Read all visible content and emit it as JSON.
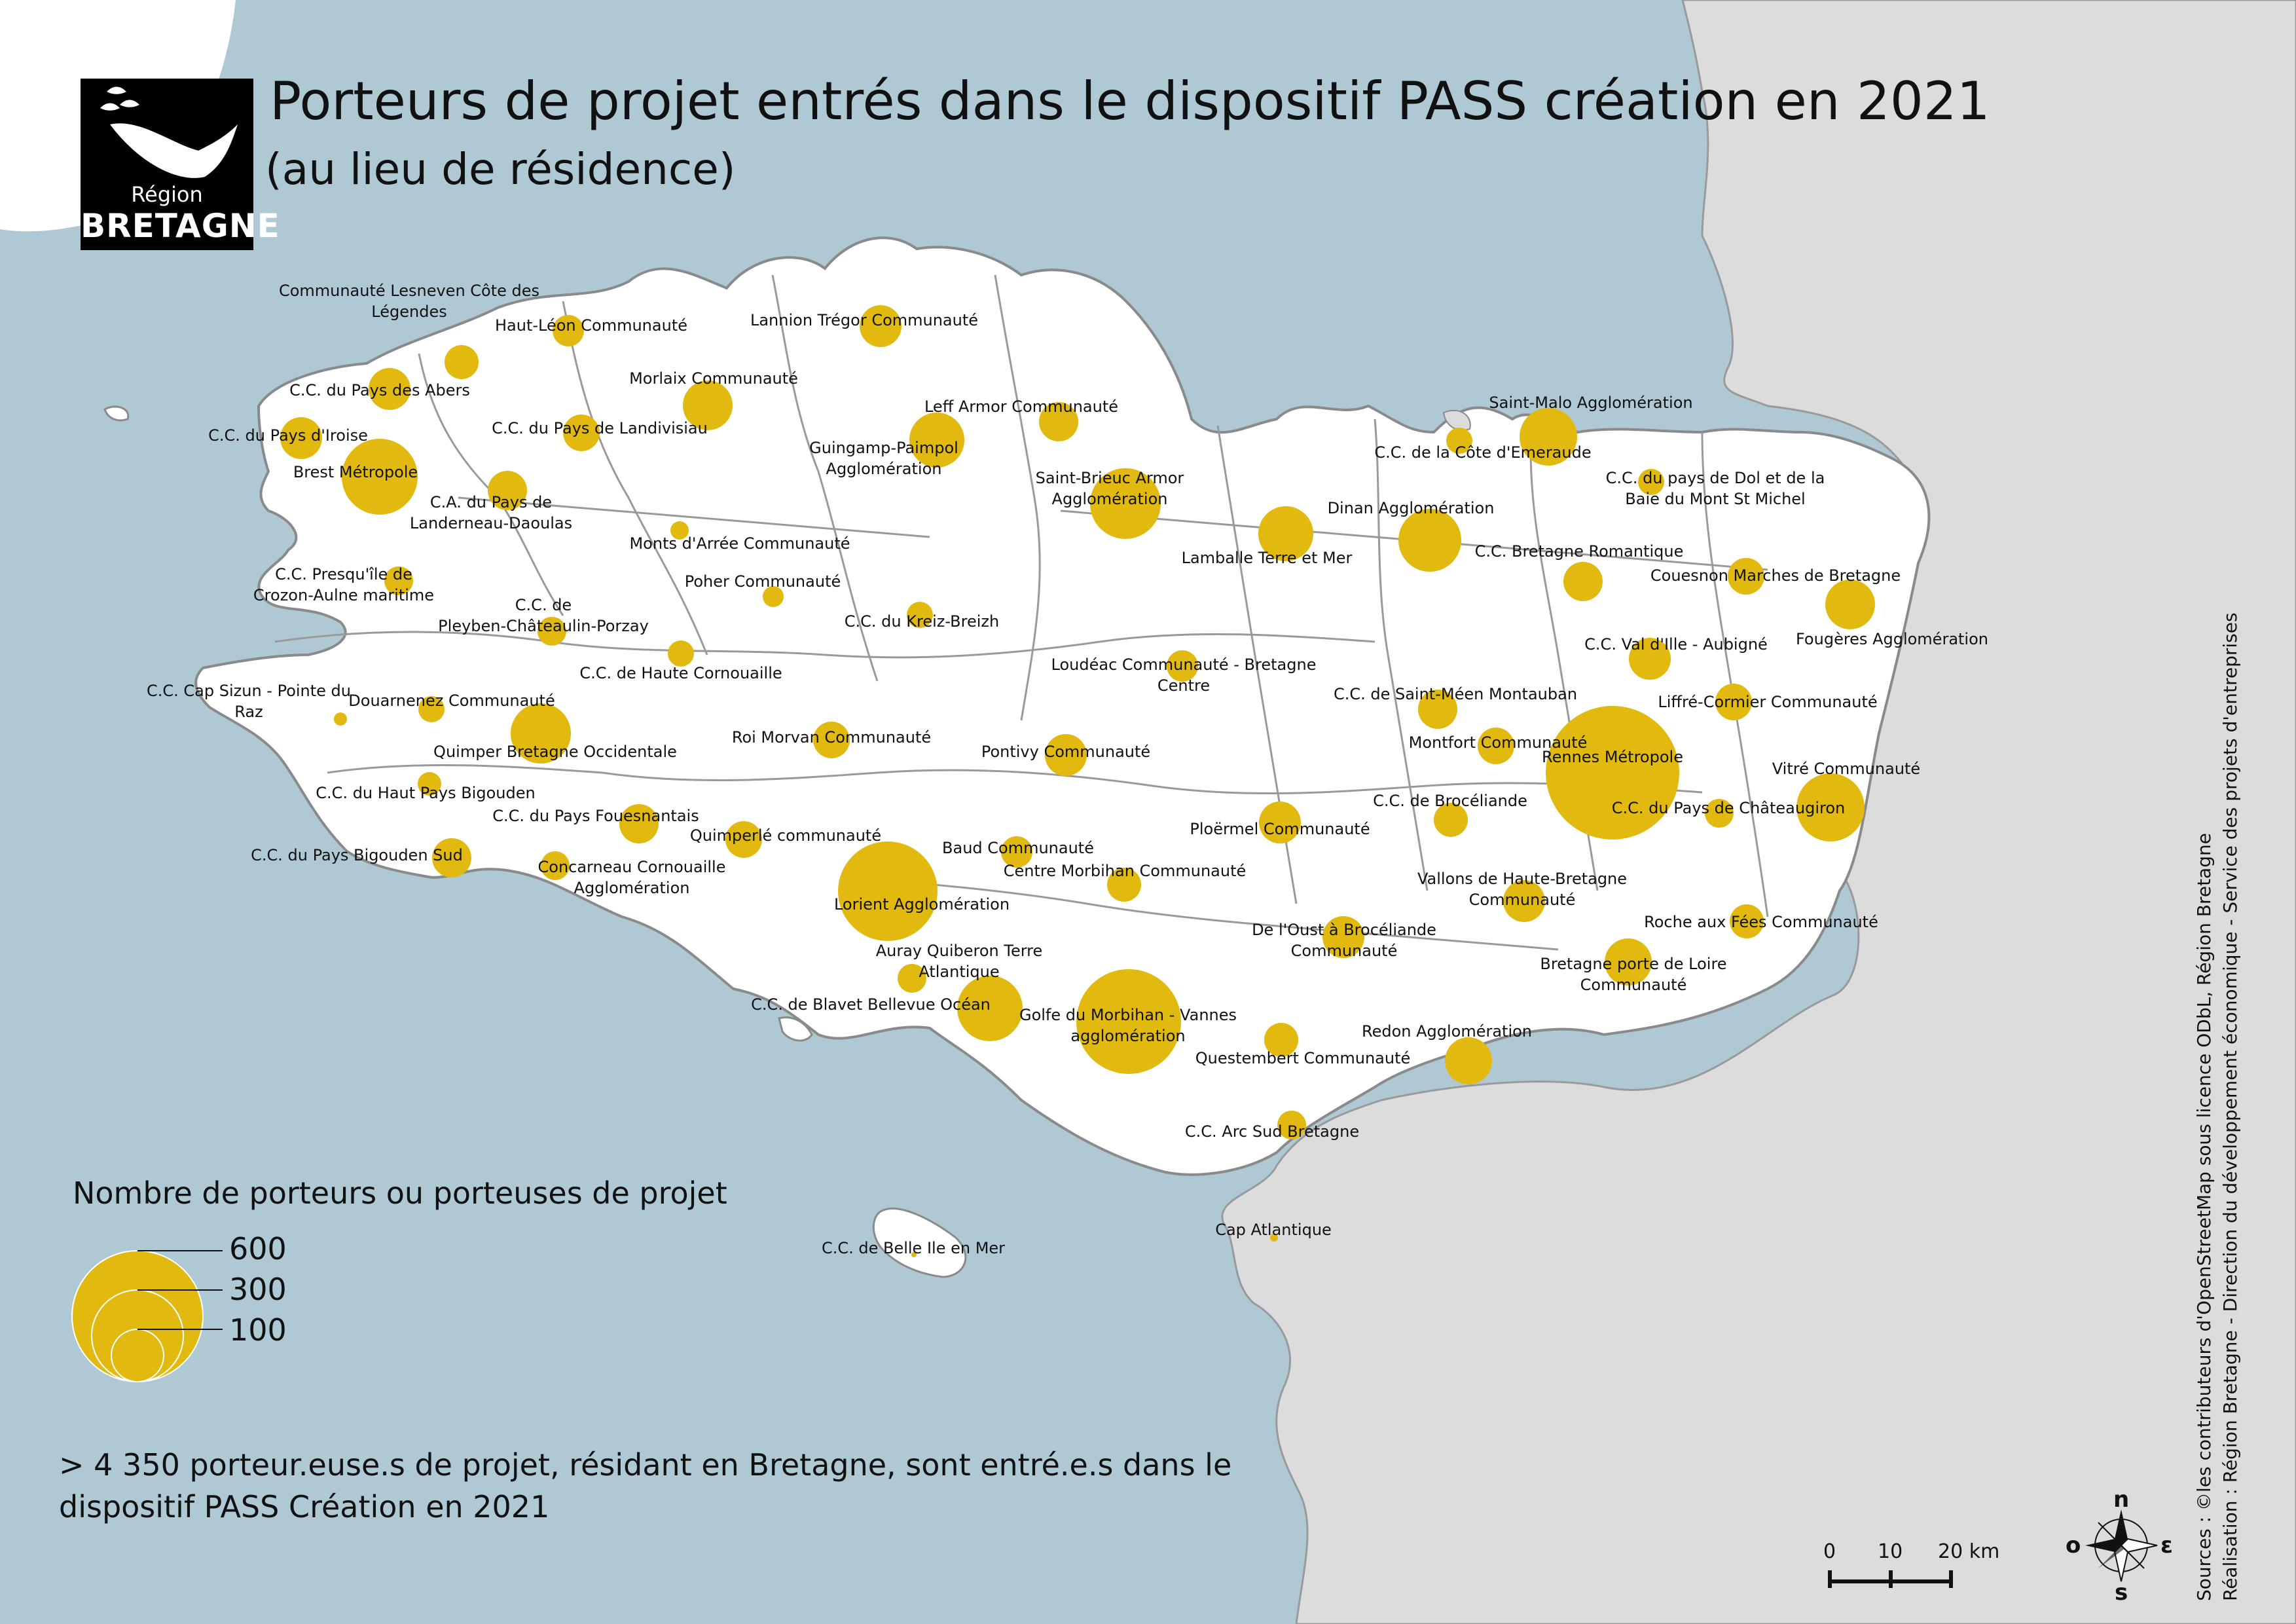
{
  "title": "Porteurs de projet entrés dans le dispositif PASS création en 2021",
  "subtitle": "(au lieu de résidence)",
  "logo": {
    "line1": "Région",
    "line2": "BRETAGNE",
    "icon": "hermine-leaf-icon"
  },
  "colors": {
    "sea": "#aec9d3",
    "land": "#ffffff",
    "neighbor_land": "#dcdcdc",
    "bubble": "#e1b90f",
    "border": "#8a8a8a"
  },
  "legend": {
    "title": "Nombre de porteurs ou porteuses de projet",
    "values": [
      "600",
      "300",
      "100"
    ]
  },
  "note": "> 4 350 porteur.euse.s de projet, résidant en Bretagne, sont entré.e.s dans le dispositif PASS Création en 2021",
  "scale": {
    "labels": [
      "0",
      "10",
      "20 km"
    ]
  },
  "compass": {
    "n": "n",
    "s": "s",
    "e": "ε",
    "o": "o"
  },
  "credits": {
    "line1": "Sources : ©les contributeurs d'OpenStreetMap sous licence ODbL, Région Bretagne",
    "line2": "Réalisation : Région Bretagne - Direction du développement économique - Service des projets d'entreprises"
  },
  "epci": [
    {
      "name": "Communauté Lesneven Côte des Légendes",
      "lines": [
        "Communauté Lesneven Côte des",
        "Légendes"
      ]
    },
    {
      "name": "Haut-Léon Communauté",
      "lines": [
        "Haut-Léon Communauté"
      ]
    },
    {
      "name": "Lannion Trégor Communauté",
      "lines": [
        "Lannion Trégor Communauté"
      ]
    },
    {
      "name": "Morlaix Communauté",
      "lines": [
        "Morlaix Communauté"
      ]
    },
    {
      "name": "C.C. du Pays des Abers",
      "lines": [
        "C.C. du Pays des Abers"
      ]
    },
    {
      "name": "C.C. du Pays de Landivisiau",
      "lines": [
        "C.C. du Pays de Landivisiau"
      ]
    },
    {
      "name": "C.C. du Pays d'Iroise",
      "lines": [
        "C.C. du Pays d'Iroise"
      ]
    },
    {
      "name": "Brest Métropole",
      "lines": [
        "Brest Métropole"
      ]
    },
    {
      "name": "C.A. du Pays de Landerneau-Daoulas",
      "lines": [
        "C.A. du Pays de",
        "Landerneau-Daoulas"
      ]
    },
    {
      "name": "Guingamp-Paimpol Agglomération",
      "lines": [
        "Guingamp-Paimpol",
        "Agglomération"
      ]
    },
    {
      "name": "Leff Armor Communauté",
      "lines": [
        "Leff Armor Communauté"
      ]
    },
    {
      "name": "Saint-Brieuc Armor Agglomération",
      "lines": [
        "Saint-Brieuc Armor",
        "Agglomération"
      ]
    },
    {
      "name": "Saint-Malo Agglomération",
      "lines": [
        "Saint-Malo Agglomération"
      ]
    },
    {
      "name": "C.C. de la Côte d'Emeraude",
      "lines": [
        "C.C. de la Côte d'Emeraude"
      ]
    },
    {
      "name": "C.C. du pays de Dol et de la Baie du Mont St Michel",
      "lines": [
        "C.C. du pays de Dol et de la",
        "Baie du Mont St Michel"
      ]
    },
    {
      "name": "Dinan Agglomération",
      "lines": [
        "Dinan Agglomération"
      ]
    },
    {
      "name": "Lamballe Terre et Mer",
      "lines": [
        "Lamballe Terre et Mer"
      ]
    },
    {
      "name": "Monts d'Arrée Communauté",
      "lines": [
        "Monts d'Arrée Communauté"
      ]
    },
    {
      "name": "C.C. Presqu'île de Crozon-Aulne maritime",
      "lines": [
        "C.C. Presqu'île de",
        "Crozon-Aulne maritime"
      ]
    },
    {
      "name": "Poher Communauté",
      "lines": [
        "Poher Communauté"
      ]
    },
    {
      "name": "C.C. de Pleyben-Châteaulin-Porzay",
      "lines": [
        "C.C. de",
        "Pleyben-Châteaulin-Porzay"
      ]
    },
    {
      "name": "C.C. du Kreiz-Breizh",
      "lines": [
        "C.C. du Kreiz-Breizh"
      ]
    },
    {
      "name": "C.C. Bretagne Romantique",
      "lines": [
        "C.C. Bretagne Romantique"
      ]
    },
    {
      "name": "Couesnon Marches de Bretagne",
      "lines": [
        "Couesnon Marches de Bretagne"
      ]
    },
    {
      "name": "Fougères Agglomération",
      "lines": [
        "Fougères Agglomération"
      ]
    },
    {
      "name": "C.C. Val d'Ille - Aubigné",
      "lines": [
        "C.C. Val d'Ille - Aubigné"
      ]
    },
    {
      "name": "C.C. Cap Sizun - Pointe du Raz",
      "lines": [
        "C.C. Cap Sizun - Pointe du",
        "Raz"
      ]
    },
    {
      "name": "Douarnenez Communauté",
      "lines": [
        "Douarnenez Communauté"
      ]
    },
    {
      "name": "C.C. de Haute Cornouaille",
      "lines": [
        "C.C. de Haute Cornouaille"
      ]
    },
    {
      "name": "Loudéac Communauté - Bretagne Centre",
      "lines": [
        "Loudéac Communauté - Bretagne",
        "Centre"
      ]
    },
    {
      "name": "C.C. de Saint-Méen Montauban",
      "lines": [
        "C.C. de Saint-Méen Montauban"
      ]
    },
    {
      "name": "Liffré-Cormier Communauté",
      "lines": [
        "Liffré-Cormier Communauté"
      ]
    },
    {
      "name": "Quimper Bretagne Occidentale",
      "lines": [
        "Quimper Bretagne Occidentale"
      ]
    },
    {
      "name": "Roi Morvan Communauté",
      "lines": [
        "Roi Morvan Communauté"
      ]
    },
    {
      "name": "Pontivy Communauté",
      "lines": [
        "Pontivy Communauté"
      ]
    },
    {
      "name": "Montfort Communauté",
      "lines": [
        "Montfort Communauté"
      ]
    },
    {
      "name": "Rennes Métropole",
      "lines": [
        "Rennes Métropole"
      ]
    },
    {
      "name": "Vitré Communauté",
      "lines": [
        "Vitré Communauté"
      ]
    },
    {
      "name": "C.C. du Haut Pays Bigouden",
      "lines": [
        "C.C. du Haut Pays Bigouden"
      ]
    },
    {
      "name": "C.C. du Pays Fouesnantais",
      "lines": [
        "C.C. du Pays Fouesnantais"
      ]
    },
    {
      "name": "C.C. de Brocéliande",
      "lines": [
        "C.C. de Brocéliande"
      ]
    },
    {
      "name": "C.C. du Pays de Châteaugiron",
      "lines": [
        "C.C. du Pays de Châteaugiron"
      ]
    },
    {
      "name": "Quimperlé communauté",
      "lines": [
        "Quimperlé communauté"
      ]
    },
    {
      "name": "Ploërmel Communauté",
      "lines": [
        "Ploërmel Communauté"
      ]
    },
    {
      "name": "C.C. du Pays Bigouden Sud",
      "lines": [
        "C.C. du Pays Bigouden Sud"
      ]
    },
    {
      "name": "Baud Communauté",
      "lines": [
        "Baud Communauté"
      ]
    },
    {
      "name": "Concarneau Cornouaille Agglomération",
      "lines": [
        "Concarneau Cornouaille",
        "Agglomération"
      ]
    },
    {
      "name": "Centre Morbihan Communauté",
      "lines": [
        "Centre Morbihan Communauté"
      ]
    },
    {
      "name": "Vallons de Haute-Bretagne Communauté",
      "lines": [
        "Vallons de Haute-Bretagne",
        "Communauté"
      ]
    },
    {
      "name": "Lorient Agglomération",
      "lines": [
        "Lorient Agglomération"
      ]
    },
    {
      "name": "Roche aux Fées Communauté",
      "lines": [
        "Roche aux Fées Communauté"
      ]
    },
    {
      "name": "De l'Oust à Brocéliande Communauté",
      "lines": [
        "De l'Oust à Brocéliande",
        "Communauté"
      ]
    },
    {
      "name": "Auray Quiberon Terre Atlantique",
      "lines": [
        "Auray Quiberon Terre",
        "Atlantique"
      ]
    },
    {
      "name": "Bretagne porte de Loire Communauté",
      "lines": [
        "Bretagne porte de Loire",
        "Communauté"
      ]
    },
    {
      "name": "C.C. de Blavet Bellevue Océan",
      "lines": [
        "C.C. de Blavet Bellevue Océan"
      ]
    },
    {
      "name": "Golfe du Morbihan - Vannes agglomération",
      "lines": [
        "Golfe du Morbihan - Vannes",
        "agglomération"
      ]
    },
    {
      "name": "Redon Agglomération",
      "lines": [
        "Redon Agglomération"
      ]
    },
    {
      "name": "Questembert Communauté",
      "lines": [
        "Questembert Communauté"
      ]
    },
    {
      "name": "C.C. Arc Sud Bretagne",
      "lines": [
        "C.C. Arc Sud Bretagne"
      ]
    },
    {
      "name": "Cap Atlantique",
      "lines": [
        "Cap Atlantique"
      ]
    },
    {
      "name": "C.C. de Belle Ile en Mer",
      "lines": [
        "C.C. de Belle Ile en Mer"
      ]
    }
  ]
}
